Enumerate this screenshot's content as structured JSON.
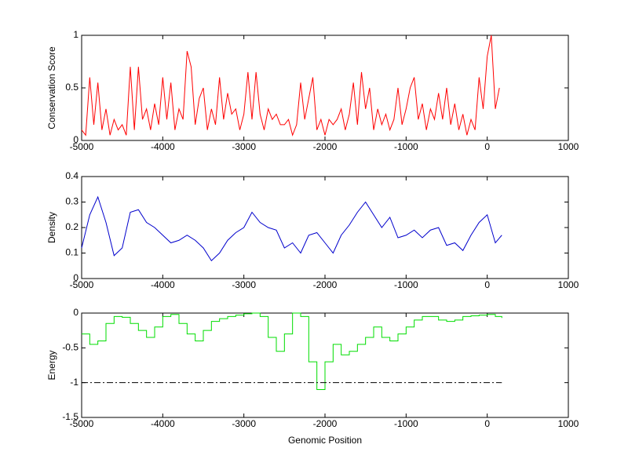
{
  "chart_data": [
    {
      "type": "line",
      "ylabel": "Conservation Score",
      "color": "#ff0000",
      "x": [
        -5000,
        -4950,
        -4900,
        -4850,
        -4800,
        -4750,
        -4700,
        -4650,
        -4600,
        -4550,
        -4500,
        -4450,
        -4400,
        -4350,
        -4300,
        -4250,
        -4200,
        -4150,
        -4100,
        -4050,
        -4000,
        -3950,
        -3900,
        -3850,
        -3800,
        -3750,
        -3700,
        -3650,
        -3600,
        -3550,
        -3500,
        -3450,
        -3400,
        -3350,
        -3300,
        -3250,
        -3200,
        -3150,
        -3100,
        -3050,
        -3000,
        -2950,
        -2900,
        -2850,
        -2800,
        -2750,
        -2700,
        -2650,
        -2600,
        -2550,
        -2500,
        -2450,
        -2400,
        -2350,
        -2300,
        -2250,
        -2200,
        -2150,
        -2100,
        -2050,
        -2000,
        -1950,
        -1900,
        -1850,
        -1800,
        -1750,
        -1700,
        -1650,
        -1600,
        -1550,
        -1500,
        -1450,
        -1400,
        -1350,
        -1300,
        -1250,
        -1200,
        -1150,
        -1100,
        -1050,
        -1000,
        -950,
        -900,
        -850,
        -800,
        -750,
        -700,
        -650,
        -600,
        -550,
        -500,
        -450,
        -400,
        -350,
        -300,
        -250,
        -200,
        -150,
        -100,
        -50,
        0,
        50,
        100,
        150
      ],
      "values": [
        0.1,
        0.05,
        0.6,
        0.15,
        0.55,
        0.1,
        0.3,
        0.05,
        0.2,
        0.1,
        0.15,
        0.05,
        0.7,
        0.1,
        0.7,
        0.2,
        0.3,
        0.1,
        0.35,
        0.15,
        0.6,
        0.2,
        0.55,
        0.1,
        0.3,
        0.2,
        0.85,
        0.7,
        0.15,
        0.4,
        0.5,
        0.1,
        0.3,
        0.15,
        0.6,
        0.2,
        0.45,
        0.25,
        0.3,
        0.1,
        0.25,
        0.65,
        0.2,
        0.65,
        0.25,
        0.1,
        0.3,
        0.2,
        0.25,
        0.15,
        0.15,
        0.2,
        0.05,
        0.15,
        0.55,
        0.2,
        0.4,
        0.6,
        0.1,
        0.2,
        0.05,
        0.2,
        0.15,
        0.2,
        0.3,
        0.1,
        0.25,
        0.55,
        0.15,
        0.65,
        0.3,
        0.5,
        0.1,
        0.3,
        0.15,
        0.25,
        0.1,
        0.2,
        0.5,
        0.15,
        0.3,
        0.5,
        0.6,
        0.2,
        0.35,
        0.1,
        0.3,
        0.2,
        0.45,
        0.2,
        0.5,
        0.15,
        0.35,
        0.1,
        0.25,
        0.05,
        0.2,
        0.1,
        0.6,
        0.3,
        0.8,
        1,
        0.3,
        0.5
      ],
      "xlim": [
        -5000,
        1000
      ],
      "xticks": [
        -5000,
        -4000,
        -3000,
        -2000,
        -1000,
        0,
        1000
      ],
      "ylim": [
        0,
        1
      ],
      "yticks": [
        0,
        0.5,
        1
      ]
    },
    {
      "type": "line",
      "ylabel": "Density",
      "color": "#0000cc",
      "x": [
        -5000,
        -4900,
        -4800,
        -4700,
        -4600,
        -4500,
        -4400,
        -4300,
        -4200,
        -4100,
        -4000,
        -3900,
        -3800,
        -3700,
        -3600,
        -3500,
        -3400,
        -3300,
        -3200,
        -3100,
        -3000,
        -2900,
        -2800,
        -2700,
        -2600,
        -2500,
        -2400,
        -2300,
        -2200,
        -2100,
        -2000,
        -1900,
        -1800,
        -1700,
        -1600,
        -1500,
        -1400,
        -1300,
        -1200,
        -1100,
        -1000,
        -900,
        -800,
        -700,
        -600,
        -500,
        -400,
        -300,
        -200,
        -100,
        0,
        100,
        180
      ],
      "values": [
        0.12,
        0.25,
        0.32,
        0.22,
        0.09,
        0.12,
        0.26,
        0.27,
        0.22,
        0.2,
        0.17,
        0.14,
        0.15,
        0.17,
        0.15,
        0.12,
        0.07,
        0.1,
        0.15,
        0.18,
        0.2,
        0.26,
        0.22,
        0.2,
        0.19,
        0.12,
        0.14,
        0.1,
        0.17,
        0.18,
        0.14,
        0.1,
        0.17,
        0.21,
        0.26,
        0.3,
        0.25,
        0.2,
        0.24,
        0.16,
        0.17,
        0.19,
        0.16,
        0.19,
        0.2,
        0.13,
        0.14,
        0.11,
        0.17,
        0.22,
        0.25,
        0.14,
        0.17
      ],
      "xlim": [
        -5000,
        1000
      ],
      "xticks": [
        -5000,
        -4000,
        -3000,
        -2000,
        -1000,
        0,
        1000
      ],
      "ylim": [
        0,
        0.4
      ],
      "yticks": [
        0,
        0.1,
        0.2,
        0.3,
        0.4
      ]
    },
    {
      "type": "step",
      "ylabel": "Energy",
      "xlabel": "Genomic Position",
      "color": "#00dd00",
      "x": [
        -5000,
        -4900,
        -4800,
        -4700,
        -4600,
        -4500,
        -4400,
        -4300,
        -4200,
        -4100,
        -4000,
        -3900,
        -3800,
        -3700,
        -3600,
        -3500,
        -3400,
        -3300,
        -3200,
        -3100,
        -3000,
        -2900,
        -2800,
        -2700,
        -2600,
        -2500,
        -2400,
        -2300,
        -2200,
        -2100,
        -2000,
        -1900,
        -1800,
        -1700,
        -1600,
        -1500,
        -1400,
        -1300,
        -1200,
        -1100,
        -1000,
        -900,
        -800,
        -700,
        -600,
        -500,
        -400,
        -300,
        -200,
        -100,
        0,
        100,
        180
      ],
      "values": [
        -0.3,
        -0.45,
        -0.4,
        -0.15,
        -0.05,
        -0.06,
        -0.15,
        -0.25,
        -0.35,
        -0.2,
        -0.05,
        -0.02,
        -0.15,
        -0.3,
        -0.4,
        -0.25,
        -0.12,
        -0.08,
        -0.05,
        -0.03,
        -0.01,
        0,
        -0.05,
        -0.35,
        -0.55,
        -0.3,
        0,
        -0.05,
        -0.7,
        -1.1,
        -0.7,
        -0.45,
        -0.6,
        -0.55,
        -0.45,
        -0.35,
        -0.2,
        -0.35,
        -0.4,
        -0.3,
        -0.2,
        -0.1,
        -0.05,
        -0.05,
        -0.1,
        -0.12,
        -0.1,
        -0.05,
        -0.04,
        -0.03,
        -0.02,
        -0.05,
        -0.07
      ],
      "hline": {
        "y": -1,
        "x": [
          -5000,
          180
        ],
        "color": "#000000",
        "style": "dashdot"
      },
      "xlim": [
        -5000,
        1000
      ],
      "xticks": [
        -5000,
        -4000,
        -3000,
        -2000,
        -1000,
        0,
        1000
      ],
      "ylim": [
        -1.5,
        0
      ],
      "yticks": [
        -1.5,
        -1,
        -0.5,
        0
      ]
    }
  ]
}
